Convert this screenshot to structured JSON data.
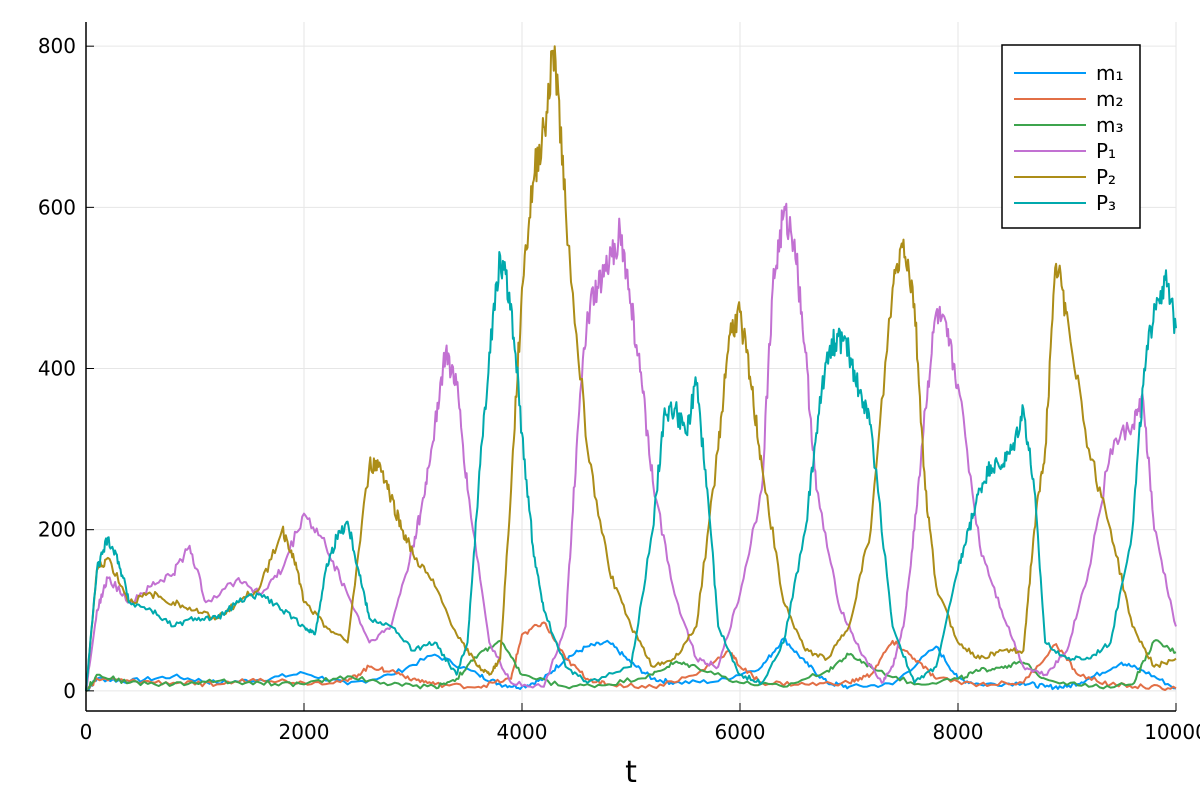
{
  "chart_data": {
    "type": "line",
    "title": "",
    "xlabel": "t",
    "ylabel": "",
    "xlim": [
      0,
      10000
    ],
    "ylim": [
      -25,
      830
    ],
    "xticks": [
      0,
      2000,
      4000,
      6000,
      8000,
      10000
    ],
    "xtick_labels": [
      "0",
      "2000",
      "4000",
      "6000",
      "8000",
      "10000"
    ],
    "yticks": [
      0,
      200,
      400,
      600,
      800
    ],
    "ytick_labels": [
      "0",
      "200",
      "400",
      "600",
      "800"
    ],
    "grid": true,
    "legend_position": "top-right",
    "series": [
      {
        "name": "m₁",
        "color": "#009af9",
        "x": [
          0,
          100,
          400,
          800,
          1200,
          1600,
          2000,
          2400,
          2800,
          3200,
          3600,
          3800,
          4000,
          4200,
          4400,
          4600,
          4800,
          5000,
          5200,
          5400,
          5800,
          6200,
          6400,
          6600,
          6800,
          7000,
          7400,
          7800,
          8000,
          8200,
          8600,
          8800,
          9000,
          9200,
          9500,
          9700,
          10000
        ],
        "y": [
          0,
          15,
          12,
          18,
          10,
          14,
          22,
          8,
          20,
          45,
          20,
          8,
          5,
          15,
          40,
          55,
          60,
          35,
          15,
          10,
          12,
          30,
          65,
          35,
          10,
          5,
          8,
          55,
          15,
          8,
          10,
          5,
          5,
          15,
          35,
          25,
          3
        ]
      },
      {
        "name": "m₂",
        "color": "#e26f46",
        "x": [
          0,
          100,
          400,
          800,
          1200,
          1600,
          2000,
          2400,
          2600,
          2800,
          3000,
          3200,
          3600,
          3900,
          4000,
          4200,
          4400,
          4600,
          4800,
          5200,
          5600,
          5900,
          6000,
          6200,
          6600,
          7000,
          7200,
          7400,
          7600,
          7800,
          8200,
          8600,
          8900,
          9100,
          9400,
          9700,
          10000
        ],
        "y": [
          0,
          15,
          12,
          10,
          8,
          15,
          10,
          12,
          30,
          25,
          15,
          8,
          5,
          15,
          70,
          85,
          40,
          15,
          8,
          5,
          20,
          50,
          30,
          10,
          8,
          10,
          20,
          62,
          40,
          15,
          8,
          10,
          58,
          20,
          8,
          5,
          3
        ]
      },
      {
        "name": "m₃",
        "color": "#3da44d",
        "x": [
          0,
          100,
          400,
          800,
          1200,
          1600,
          2000,
          2400,
          2800,
          3200,
          3400,
          3600,
          3800,
          4000,
          4400,
          4800,
          5200,
          5400,
          5600,
          6000,
          6400,
          6800,
          7000,
          7200,
          7600,
          8000,
          8200,
          8400,
          8600,
          8800,
          9200,
          9600,
          9800,
          10000
        ],
        "y": [
          0,
          20,
          10,
          8,
          12,
          10,
          8,
          18,
          8,
          5,
          15,
          45,
          62,
          20,
          5,
          8,
          20,
          35,
          30,
          10,
          5,
          25,
          45,
          30,
          8,
          15,
          25,
          30,
          35,
          15,
          5,
          8,
          62,
          48
        ]
      },
      {
        "name": "P₁",
        "color": "#c271d2",
        "x": [
          0,
          100,
          200,
          400,
          600,
          800,
          950,
          1100,
          1400,
          1600,
          1800,
          2000,
          2200,
          2400,
          2600,
          2800,
          3000,
          3100,
          3200,
          3300,
          3400,
          3500,
          3700,
          3900,
          4200,
          4400,
          4500,
          4600,
          4700,
          4800,
          4900,
          5000,
          5100,
          5200,
          5400,
          5600,
          5800,
          6000,
          6200,
          6300,
          6400,
          6500,
          6600,
          6700,
          6900,
          7100,
          7300,
          7400,
          7500,
          7600,
          7700,
          7800,
          7900,
          8000,
          8200,
          8400,
          8600,
          8800,
          9000,
          9200,
          9400,
          9600,
          9700,
          9800,
          10000
        ],
        "y": [
          0,
          100,
          140,
          110,
          130,
          145,
          180,
          110,
          140,
          120,
          150,
          220,
          180,
          120,
          60,
          80,
          180,
          240,
          330,
          420,
          380,
          250,
          60,
          10,
          5,
          80,
          300,
          470,
          500,
          530,
          570,
          480,
          380,
          260,
          120,
          40,
          30,
          120,
          250,
          500,
          590,
          560,
          420,
          250,
          110,
          50,
          10,
          30,
          80,
          200,
          350,
          470,
          440,
          380,
          180,
          100,
          30,
          20,
          50,
          150,
          300,
          330,
          360,
          200,
          80
        ]
      },
      {
        "name": "P₂",
        "color": "#ac8d18",
        "x": [
          0,
          100,
          200,
          400,
          600,
          800,
          1000,
          1200,
          1400,
          1600,
          1800,
          1900,
          2000,
          2200,
          2400,
          2600,
          2700,
          2800,
          2900,
          3000,
          3200,
          3400,
          3600,
          3700,
          3800,
          3900,
          4000,
          4100,
          4200,
          4300,
          4400,
          4600,
          4800,
          5000,
          5200,
          5400,
          5600,
          5800,
          5900,
          6000,
          6100,
          6200,
          6400,
          6600,
          6800,
          7000,
          7200,
          7400,
          7500,
          7600,
          7700,
          7800,
          8000,
          8200,
          8400,
          8600,
          8700,
          8800,
          8900,
          9000,
          9200,
          9400,
          9600,
          9800,
          10000
        ],
        "y": [
          0,
          150,
          165,
          110,
          120,
          110,
          100,
          90,
          110,
          130,
          200,
          170,
          110,
          80,
          60,
          280,
          280,
          240,
          200,
          170,
          130,
          70,
          30,
          20,
          40,
          250,
          500,
          630,
          700,
          800,
          600,
          300,
          150,
          80,
          30,
          40,
          80,
          300,
          440,
          470,
          380,
          280,
          110,
          50,
          40,
          80,
          200,
          500,
          560,
          480,
          250,
          130,
          60,
          40,
          50,
          50,
          200,
          300,
          530,
          470,
          300,
          200,
          80,
          30,
          40
        ]
      },
      {
        "name": "P₃",
        "color": "#00a9ad",
        "x": [
          0,
          100,
          200,
          300,
          400,
          600,
          800,
          1000,
          1200,
          1400,
          1600,
          1800,
          2000,
          2100,
          2200,
          2300,
          2400,
          2500,
          2600,
          2800,
          3000,
          3200,
          3400,
          3500,
          3600,
          3700,
          3800,
          3900,
          4000,
          4100,
          4200,
          4400,
          4600,
          5000,
          5200,
          5300,
          5400,
          5500,
          5600,
          5700,
          5800,
          6000,
          6200,
          6400,
          6600,
          6700,
          6800,
          6900,
          7000,
          7100,
          7200,
          7400,
          7600,
          7800,
          8000,
          8100,
          8200,
          8300,
          8400,
          8500,
          8600,
          8700,
          8800,
          9000,
          9200,
          9400,
          9600,
          9700,
          9800,
          9900,
          10000
        ],
        "y": [
          0,
          150,
          190,
          160,
          110,
          100,
          80,
          90,
          90,
          110,
          120,
          100,
          80,
          70,
          150,
          190,
          210,
          150,
          90,
          80,
          50,
          60,
          20,
          60,
          250,
          420,
          540,
          480,
          320,
          180,
          100,
          30,
          10,
          30,
          200,
          340,
          350,
          320,
          380,
          250,
          80,
          20,
          10,
          60,
          200,
          320,
          420,
          440,
          420,
          370,
          330,
          80,
          10,
          30,
          150,
          200,
          250,
          280,
          280,
          300,
          350,
          250,
          60,
          40,
          40,
          60,
          200,
          380,
          480,
          510,
          450
        ]
      }
    ]
  }
}
